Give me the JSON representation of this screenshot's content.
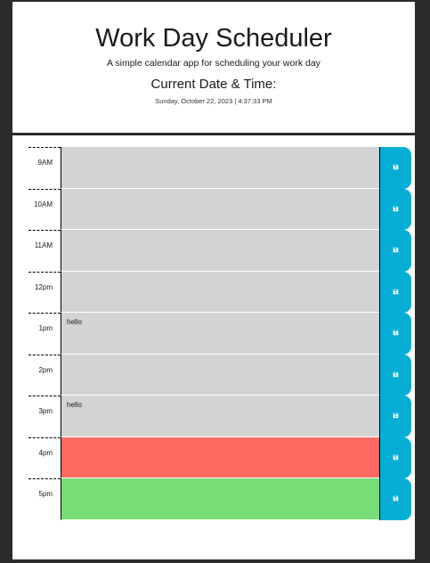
{
  "header": {
    "title": "Work Day Scheduler",
    "subtitle": "A simple calendar app for scheduling your work day",
    "current_label": "Current Date & Time:",
    "current_value": "Sunday, October 22, 2023 | 4:37:33 PM"
  },
  "colors": {
    "past": "#d3d3d3",
    "present": "#ff6961",
    "future": "#77dd77",
    "save": "#06aed5"
  },
  "rows": [
    {
      "hour": "9AM",
      "text": "",
      "state": "past",
      "save_icon": "floppy-disk-icon"
    },
    {
      "hour": "10AM",
      "text": "",
      "state": "past",
      "save_icon": "floppy-disk-icon"
    },
    {
      "hour": "11AM",
      "text": "",
      "state": "past",
      "save_icon": "floppy-disk-icon"
    },
    {
      "hour": "12pm",
      "text": "",
      "state": "past",
      "save_icon": "floppy-disk-icon"
    },
    {
      "hour": "1pm",
      "text": "hello",
      "state": "past",
      "save_icon": "floppy-disk-icon"
    },
    {
      "hour": "2pm",
      "text": "",
      "state": "past",
      "save_icon": "floppy-disk-icon"
    },
    {
      "hour": "3pm",
      "text": "hello",
      "state": "past",
      "save_icon": "floppy-disk-icon"
    },
    {
      "hour": "4pm",
      "text": "",
      "state": "present",
      "save_icon": "floppy-disk-icon"
    },
    {
      "hour": "5pm",
      "text": "",
      "state": "future",
      "save_icon": "floppy-disk-icon"
    }
  ]
}
